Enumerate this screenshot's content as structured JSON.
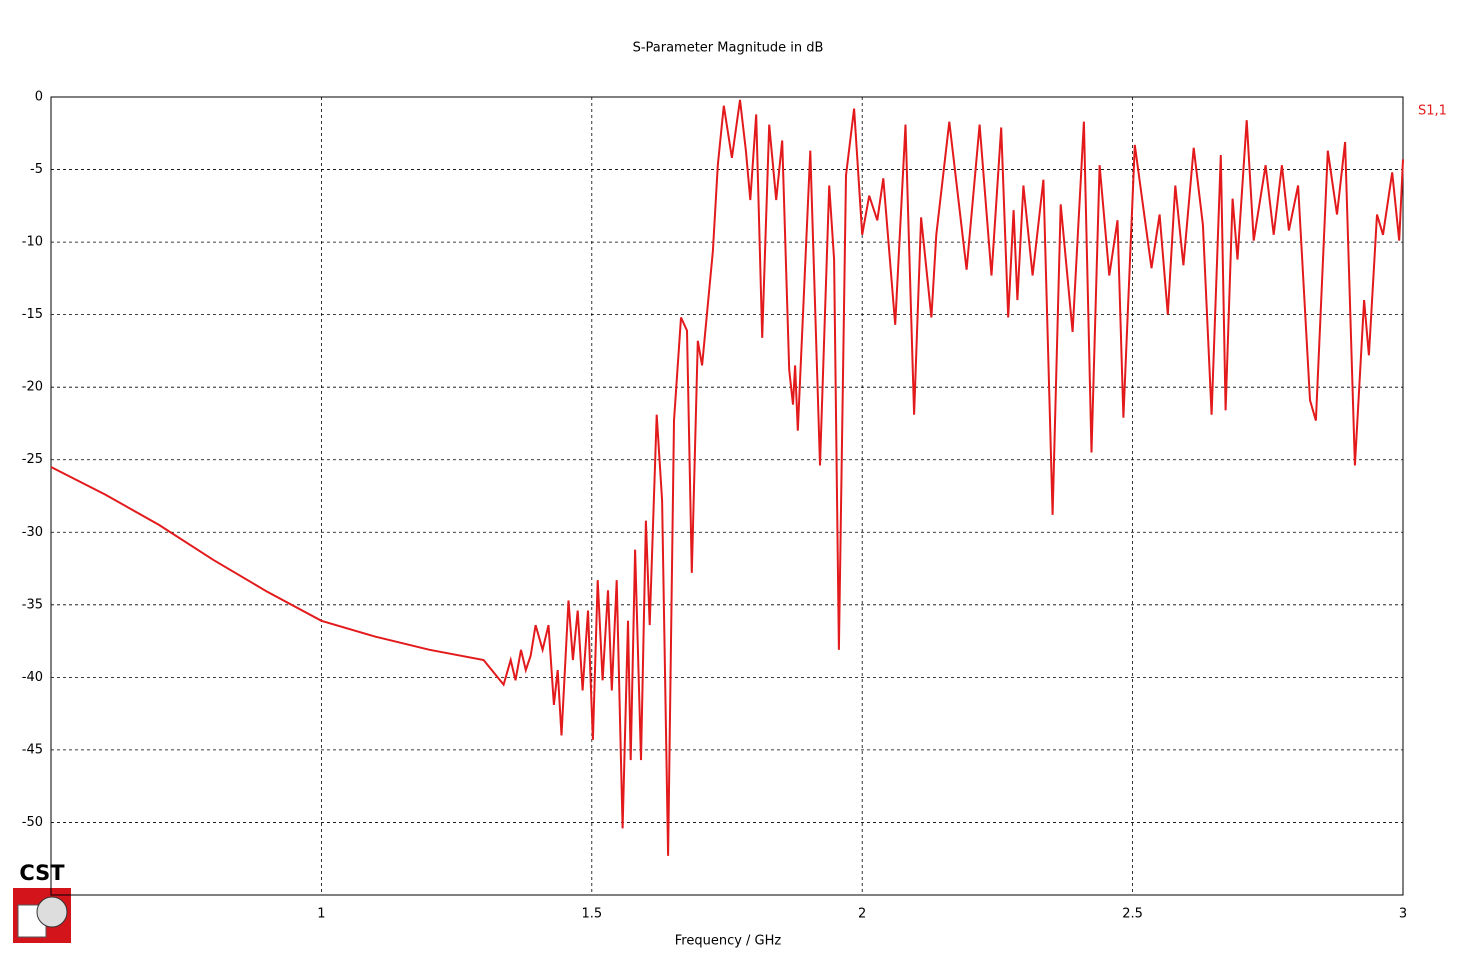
{
  "chart_data": {
    "type": "line",
    "title": "S-Parameter Magnitude in dB",
    "x_label": "Frequency / GHz",
    "logo": "CST",
    "xlim": [
      0.5,
      3
    ],
    "ylim": [
      -55,
      0
    ],
    "xticks": [
      1,
      1.5,
      2,
      2.5,
      3
    ],
    "yticks": [
      0,
      -5,
      -10,
      -15,
      -20,
      -25,
      -30,
      -35,
      -40,
      -45,
      -50
    ],
    "grid": true,
    "legend": "top-right",
    "x": [
      0.5,
      0.6,
      0.7,
      0.8,
      0.9,
      1.0,
      1.1,
      1.2,
      1.3,
      1.337,
      1.35,
      1.359,
      1.369,
      1.378,
      1.387,
      1.396,
      1.409,
      1.42,
      1.43,
      1.437,
      1.444,
      1.457,
      1.465,
      1.474,
      1.483,
      1.493,
      1.502,
      1.511,
      1.52,
      1.53,
      1.537,
      1.546,
      1.557,
      1.567,
      1.572,
      1.58,
      1.591,
      1.6,
      1.607,
      1.62,
      1.63,
      1.641,
      1.652,
      1.665,
      1.676,
      1.685,
      1.696,
      1.704,
      1.724,
      1.733,
      1.744,
      1.759,
      1.774,
      1.785,
      1.793,
      1.804,
      1.815,
      1.828,
      1.841,
      1.852,
      1.865,
      1.872,
      1.876,
      1.881,
      1.904,
      1.922,
      1.939,
      1.948,
      1.957,
      1.97,
      1.985,
      2.0,
      2.013,
      2.028,
      2.039,
      2.061,
      2.08,
      2.096,
      2.109,
      2.128,
      2.137,
      2.161,
      2.193,
      2.217,
      2.239,
      2.257,
      2.27,
      2.28,
      2.287,
      2.298,
      2.315,
      2.335,
      2.352,
      2.367,
      2.389,
      2.41,
      2.424,
      2.439,
      2.457,
      2.472,
      2.483,
      2.504,
      2.535,
      2.55,
      2.565,
      2.579,
      2.594,
      2.613,
      2.63,
      2.646,
      2.663,
      2.672,
      2.685,
      2.694,
      2.711,
      2.724,
      2.746,
      2.761,
      2.776,
      2.789,
      2.806,
      2.828,
      2.839,
      2.861,
      2.878,
      2.893,
      2.911,
      2.928,
      2.937,
      2.952,
      2.963,
      2.98,
      2.993,
      3.0
    ],
    "series": [
      {
        "name": "S1,1",
        "color": "#e31a1c",
        "values": [
          -25.5,
          -27.4,
          -29.5,
          -31.9,
          -34.1,
          -36.1,
          -37.2,
          -38.1,
          -38.8,
          -40.5,
          -38.8,
          -40.2,
          -38.1,
          -39.5,
          -38.5,
          -36.4,
          -38.1,
          -36.4,
          -41.9,
          -39.5,
          -44.0,
          -34.7,
          -38.8,
          -35.4,
          -40.9,
          -35.4,
          -44.3,
          -33.3,
          -40.2,
          -34.0,
          -40.9,
          -33.3,
          -50.4,
          -36.1,
          -45.7,
          -31.2,
          -45.7,
          -29.2,
          -36.4,
          -21.9,
          -27.8,
          -52.3,
          -22.3,
          -15.2,
          -16.1,
          -32.8,
          -16.8,
          -18.5,
          -10.6,
          -4.7,
          -0.6,
          -4.2,
          -0.2,
          -3.7,
          -7.1,
          -1.2,
          -16.6,
          -1.9,
          -7.1,
          -3.0,
          -18.8,
          -21.2,
          -18.5,
          -23.0,
          -3.7,
          -25.4,
          -6.1,
          -11.2,
          -38.1,
          -5.4,
          -0.8,
          -9.5,
          -6.8,
          -8.5,
          -5.6,
          -15.7,
          -1.9,
          -21.9,
          -8.3,
          -15.2,
          -9.5,
          -1.7,
          -11.9,
          -1.9,
          -12.3,
          -2.1,
          -15.2,
          -7.8,
          -14.0,
          -6.1,
          -12.3,
          -5.7,
          -28.8,
          -7.4,
          -16.2,
          -1.7,
          -24.5,
          -4.7,
          -12.3,
          -8.5,
          -22.1,
          -3.3,
          -11.8,
          -8.1,
          -15.0,
          -6.1,
          -11.6,
          -3.5,
          -8.8,
          -21.9,
          -4.0,
          -21.6,
          -7.0,
          -11.2,
          -1.6,
          -9.9,
          -4.7,
          -9.5,
          -4.7,
          -9.2,
          -6.1,
          -20.9,
          -22.3,
          -3.7,
          -8.1,
          -3.1,
          -25.4,
          -14.0,
          -17.8,
          -8.1,
          -9.5,
          -5.2,
          -9.9,
          -4.3
        ]
      }
    ]
  }
}
